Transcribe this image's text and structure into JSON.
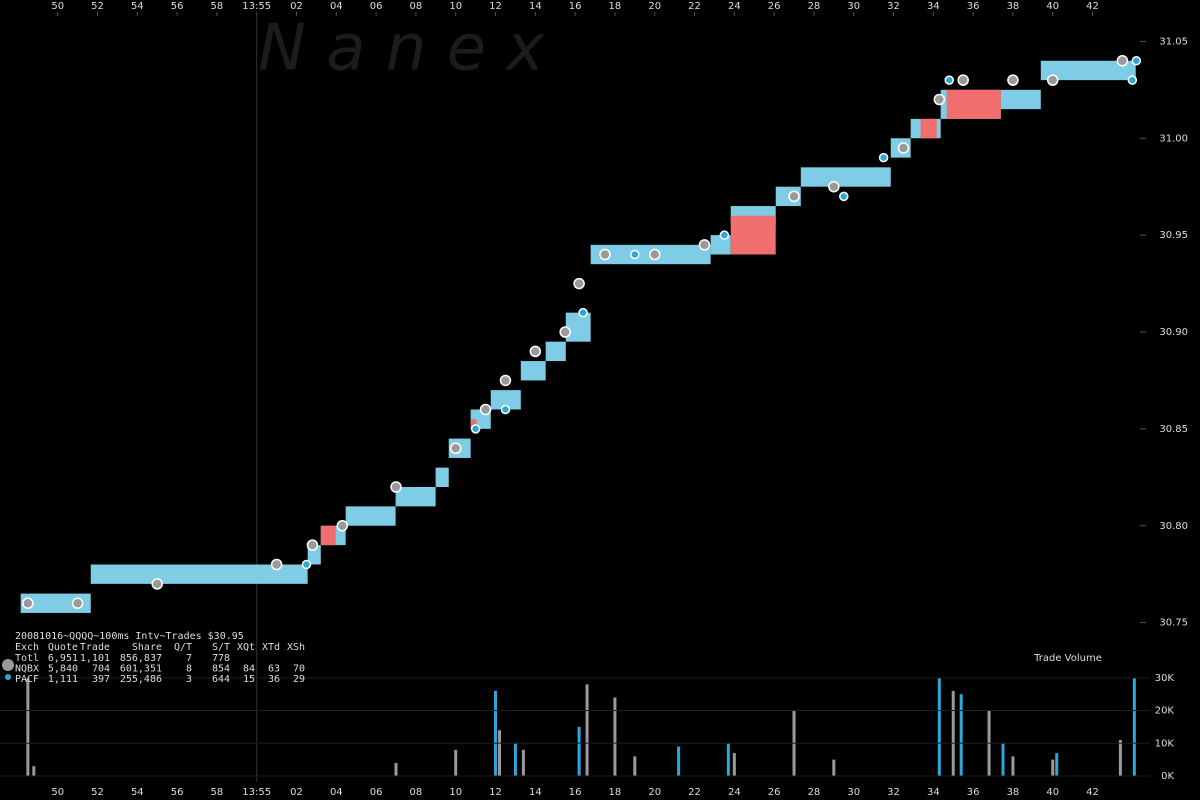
{
  "chart_data": [
    {
      "type": "range",
      "watermark": "N a n e x",
      "xlim": [
        -12.9,
        47.4
      ],
      "xticks": [
        {
          "value": -10,
          "label": "50"
        },
        {
          "value": -8,
          "label": "52"
        },
        {
          "value": -6,
          "label": "54"
        },
        {
          "value": -4,
          "label": "56"
        },
        {
          "value": -2,
          "label": "58"
        },
        {
          "value": 0,
          "label": "13:55"
        },
        {
          "value": 2,
          "label": "02"
        },
        {
          "value": 4,
          "label": "04"
        },
        {
          "value": 6,
          "label": "06"
        },
        {
          "value": 8,
          "label": "08"
        },
        10,
        12,
        14,
        16,
        18,
        20,
        22,
        24,
        26,
        28,
        30,
        32,
        34,
        36,
        38,
        40,
        42
      ],
      "ylim": [
        30.74,
        31.06
      ],
      "yticks": [
        {
          "value": 30.75,
          "label": "30.75"
        },
        {
          "value": 30.8,
          "label": "30.80"
        },
        {
          "value": 30.85,
          "label": "30.85"
        },
        {
          "value": 30.9,
          "label": "30.90"
        },
        {
          "value": 30.95,
          "label": "30.95"
        },
        {
          "value": 31.0,
          "label": "31.00"
        },
        {
          "value": 31.05,
          "label": "31.05"
        }
      ],
      "bands": {
        "color": "#7ecce6",
        "x0": [
          -11.86,
          -8.34,
          2.56,
          3.22,
          4.47,
          6.98,
          8.99,
          9.65,
          10.75,
          11.76,
          13.27,
          14.52,
          15.53,
          16.78,
          22.81,
          23.82,
          26.08,
          27.34,
          31.86,
          32.86,
          34.37,
          37.39,
          39.4
        ],
        "x1": [
          -8.34,
          2.56,
          3.22,
          4.47,
          6.98,
          8.99,
          9.65,
          10.75,
          11.76,
          13.27,
          14.52,
          15.53,
          16.78,
          22.81,
          23.82,
          26.08,
          27.34,
          31.86,
          32.86,
          34.37,
          37.39,
          39.4,
          44.17
        ],
        "low": [
          30.755,
          30.77,
          30.78,
          30.79,
          30.8,
          30.81,
          30.82,
          30.835,
          30.85,
          30.86,
          30.875,
          30.885,
          30.895,
          30.935,
          30.94,
          30.955,
          30.965,
          30.975,
          30.99,
          31.0,
          31.01,
          31.015,
          31.03
        ],
        "high": [
          30.765,
          30.78,
          30.79,
          30.8,
          30.81,
          30.82,
          30.83,
          30.845,
          30.86,
          30.87,
          30.885,
          30.895,
          30.91,
          30.945,
          30.95,
          30.965,
          30.975,
          30.985,
          31.0,
          31.01,
          31.025,
          31.025,
          31.04
        ]
      },
      "crossed": {
        "color": "#f06e6e",
        "x0": [
          3.22,
          10.75,
          23.82,
          33.36,
          34.67
        ],
        "x1": [
          3.97,
          11.05,
          26.08,
          34.17,
          37.39
        ],
        "low": [
          30.79,
          30.85,
          30.94,
          31.0,
          31.01
        ],
        "high": [
          30.8,
          30.855,
          30.96,
          31.01,
          31.025
        ]
      },
      "series": [
        {
          "name": "NQBX",
          "color": "#9a9a9a",
          "x": [
            -11.5,
            -9,
            -5,
            1,
            2.8,
            4.3,
            7,
            10,
            11.5,
            12.5,
            14,
            15.5,
            16.2,
            17.5,
            20,
            22.5,
            27,
            29,
            32.5,
            34.3,
            35.5,
            38,
            40,
            43.5
          ],
          "values": [
            30.76,
            30.76,
            30.77,
            30.78,
            30.79,
            30.8,
            30.82,
            30.84,
            30.86,
            30.875,
            30.89,
            30.9,
            30.925,
            30.94,
            30.94,
            30.945,
            30.97,
            30.975,
            30.995,
            31.02,
            31.03,
            31.03,
            31.03,
            31.04
          ]
        },
        {
          "name": "PACF",
          "color": "#2aa8dc",
          "x": [
            2.5,
            11,
            12.5,
            16.4,
            19,
            23.5,
            29.5,
            31.5,
            34.8,
            44,
            44.2
          ],
          "values": [
            30.78,
            30.85,
            30.86,
            30.91,
            30.94,
            30.95,
            30.97,
            30.99,
            31.03,
            31.03,
            31.04
          ]
        }
      ],
      "info": {
        "title": "20081016~QQQQ~100ms Intv~Trades $30.95",
        "header": [
          "Exch",
          "Quote",
          "Trade",
          "Share",
          "Q/T",
          "S/T",
          "XQt",
          "XTd",
          "XSh"
        ],
        "total_name": "Totl",
        "rows": [
          [
            "6,951",
            "1,101",
            "856,837",
            "7",
            "778",
            "",
            "",
            ""
          ],
          [
            "5,840",
            "704",
            "601,351",
            "8",
            "854",
            "84",
            "63",
            "70"
          ],
          [
            "1,111",
            "397",
            "255,486",
            "3",
            "644",
            "15",
            "36",
            "29"
          ]
        ]
      }
    },
    {
      "type": "bar",
      "title": "Trade Volume",
      "xlim": [
        -12.9,
        47.4
      ],
      "ylim": [
        0,
        33000
      ],
      "yticks": [
        {
          "value": 0,
          "label": "0K"
        },
        {
          "value": 10000,
          "label": "10K"
        },
        {
          "value": 20000,
          "label": "20K"
        },
        {
          "value": 30000,
          "label": "30K"
        }
      ],
      "series": [
        {
          "name": "NQBX",
          "color": "#9a9a9a",
          "x": [
            -11.5,
            -11.2,
            7,
            10,
            12.2,
            13.4,
            16.6,
            18,
            19,
            24,
            27,
            29,
            35,
            36.8,
            38,
            40,
            43.4
          ],
          "values": [
            30000,
            3000,
            4000,
            8000,
            14000,
            8000,
            28000,
            24000,
            6000,
            7000,
            20000,
            5000,
            26000,
            20000,
            6000,
            5000,
            11000
          ]
        },
        {
          "name": "PACF",
          "color": "#2aa8dc",
          "x": [
            12,
            13,
            16.2,
            21.2,
            23.7,
            34.3,
            35.4,
            37.5,
            40.2,
            44.1
          ],
          "values": [
            26000,
            10000,
            15000,
            9000,
            10000,
            30000,
            25000,
            10000,
            7000,
            30000
          ]
        }
      ]
    }
  ]
}
